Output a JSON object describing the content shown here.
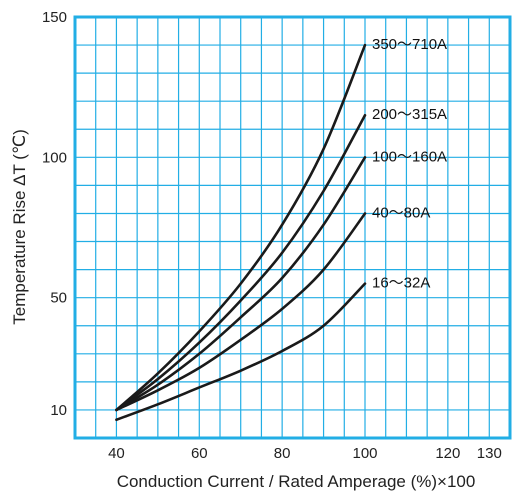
{
  "chart_data": {
    "type": "line",
    "xlabel": "Conduction Current / Rated Amperage (%)×100",
    "ylabel": "Temperature Rise ΔT (℃)",
    "xlim": [
      30,
      135
    ],
    "ylim": [
      0,
      150
    ],
    "x_ticks": [
      40,
      60,
      80,
      100,
      120,
      130
    ],
    "y_ticks": [
      10,
      50,
      100,
      150
    ],
    "grid": true,
    "colors": {
      "grid": "#22aee5",
      "line": "#1a1a1a"
    },
    "series": [
      {
        "name": "350～710A",
        "x": [
          40,
          50,
          60,
          70,
          80,
          90,
          100
        ],
        "y": [
          10,
          23,
          38,
          55,
          76,
          103,
          140
        ]
      },
      {
        "name": "200～315A",
        "x": [
          40,
          50,
          60,
          70,
          80,
          90,
          100
        ],
        "y": [
          10,
          21,
          34,
          49,
          66,
          88,
          115
        ]
      },
      {
        "name": "100～160A",
        "x": [
          40,
          50,
          60,
          70,
          80,
          90,
          100
        ],
        "y": [
          10,
          19,
          30,
          43,
          57,
          76,
          100
        ]
      },
      {
        "name": "40～80A",
        "x": [
          40,
          50,
          60,
          70,
          80,
          90,
          100
        ],
        "y": [
          10,
          17,
          25,
          35,
          46,
          60,
          80
        ]
      },
      {
        "name": "16～32A",
        "x": [
          40,
          50,
          60,
          70,
          80,
          90,
          100
        ],
        "y": [
          6.5,
          12,
          18,
          24,
          31,
          40,
          55
        ]
      }
    ]
  }
}
